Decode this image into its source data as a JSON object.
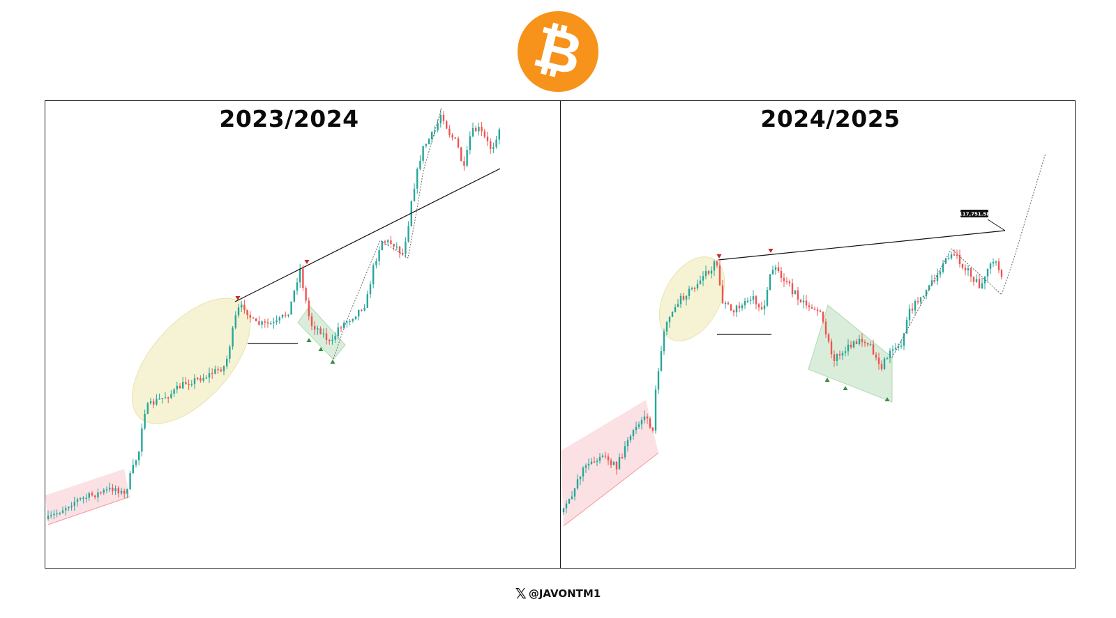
{
  "logo": {
    "glyph": "₿",
    "color": "#F7931A"
  },
  "colors": {
    "up": "#26a69a",
    "down": "#ef5350",
    "line": "#111111",
    "highlight": "#f5f2d0",
    "channel": "#fadadd",
    "wedge": "#d6ecd6",
    "marker_down": "#c62828",
    "marker_up": "#388e3c"
  },
  "footer": {
    "icon": "x-logo",
    "icon_glyph": "𝕏",
    "handle": "@JAVONTM1"
  },
  "chart_data": [
    {
      "type": "candlestick",
      "title": "2023/2024",
      "xlabel": "",
      "ylabel": "",
      "grid": false,
      "annotations": [
        "ascending-channel",
        "highlight-ellipse",
        "resistance-trendline",
        "support-line",
        "falling-wedge",
        "projection-path"
      ]
    },
    {
      "type": "candlestick",
      "title": "2024/2025",
      "xlabel": "",
      "ylabel": "",
      "grid": false,
      "price_label": "117,751.58",
      "annotations": [
        "ascending-channel",
        "highlight-ellipse",
        "resistance-trendline",
        "support-line",
        "falling-wedge",
        "projection-path"
      ]
    }
  ]
}
